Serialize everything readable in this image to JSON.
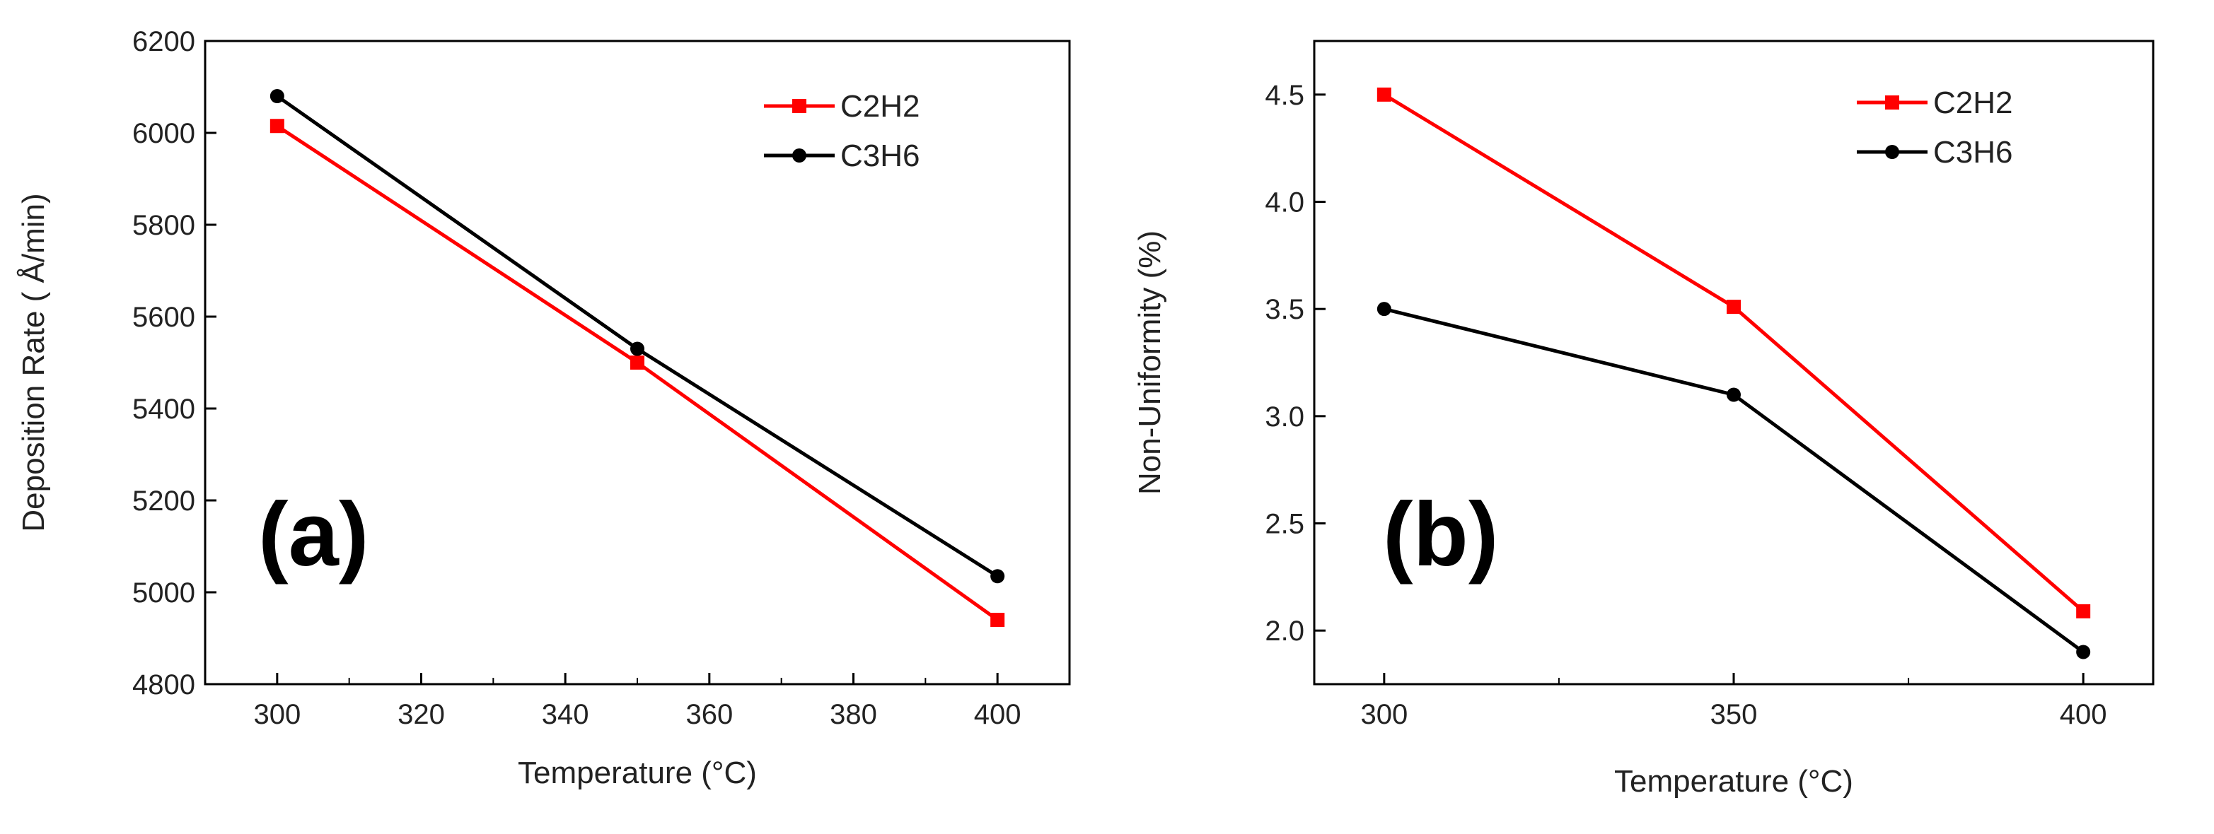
{
  "chart_data": [
    {
      "type": "line",
      "panel_label": "(a)",
      "xlabel": "Temperature (°C)",
      "ylabel": "Deposition Rate ( Å/min)",
      "xlim": [
        290,
        410
      ],
      "ylim": [
        4800,
        6200
      ],
      "xticks": [
        300,
        320,
        340,
        360,
        380,
        400
      ],
      "xtick_labels": [
        "300",
        "320",
        "340",
        "360",
        "380",
        "400"
      ],
      "yticks": [
        4800,
        5000,
        5200,
        5400,
        5600,
        5800,
        6000,
        6200
      ],
      "ytick_labels": [
        "4800",
        "5000",
        "5200",
        "5400",
        "5600",
        "5800",
        "6000",
        "6200"
      ],
      "legend_position": "top-right",
      "series": [
        {
          "name": "C2H2",
          "color": "#ff0000",
          "marker": "square",
          "x": [
            300,
            350,
            400
          ],
          "values": [
            6015,
            5500,
            4940
          ]
        },
        {
          "name": "C3H6",
          "color": "#000000",
          "marker": "circle",
          "x": [
            300,
            350,
            400
          ],
          "values": [
            6080,
            5530,
            5035
          ]
        }
      ]
    },
    {
      "type": "line",
      "panel_label": "(b)",
      "xlabel": "Temperature (°C)",
      "ylabel": "Non-Uniformity (%)",
      "xlim": [
        290,
        410
      ],
      "ylim": [
        1.75,
        4.75
      ],
      "xticks": [
        300,
        350,
        400
      ],
      "xtick_labels": [
        "300",
        "350",
        "400"
      ],
      "yticks": [
        2.0,
        2.5,
        3.0,
        3.5,
        4.0,
        4.5
      ],
      "ytick_labels": [
        "2.0",
        "2.5",
        "3.0",
        "3.5",
        "4.0",
        "4.5"
      ],
      "legend_position": "top-right",
      "series": [
        {
          "name": "C2H2",
          "color": "#ff0000",
          "marker": "square",
          "x": [
            300,
            350,
            400
          ],
          "values": [
            4.5,
            3.51,
            2.09
          ]
        },
        {
          "name": "C3H6",
          "color": "#000000",
          "marker": "circle",
          "x": [
            300,
            350,
            400
          ],
          "values": [
            3.5,
            3.1,
            1.9
          ]
        }
      ]
    }
  ]
}
